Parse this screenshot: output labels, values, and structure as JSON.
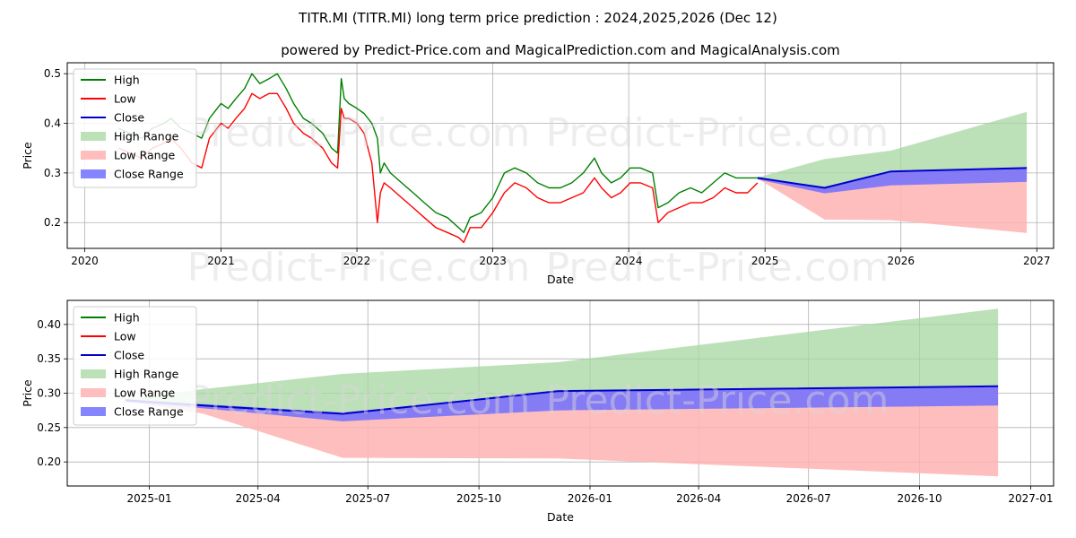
{
  "header": {
    "title": "TITR.MI (TITR.MI) long term price prediction : 2024,2025,2026 (Dec 12)",
    "subtitle": "powered by Predict-Price.com and MagicalPrediction.com and MagicalAnalysis.com"
  },
  "watermark": "Predict-Price.com",
  "colors": {
    "high": "#008000",
    "low": "#ff0000",
    "close": "#0000cc",
    "high_range": "#a6d5a0",
    "low_range": "#ffb3b3",
    "close_range": "#7070ff",
    "grid": "#b0b0b0"
  },
  "chart_data": [
    {
      "type": "line",
      "xlabel": "Date",
      "ylabel": "Price",
      "xlim": [
        "2019-11-15",
        "2027-02-15"
      ],
      "ylim": [
        0.148,
        0.522
      ],
      "x_ticks": [
        "2020",
        "2021",
        "2022",
        "2023",
        "2024",
        "2025",
        "2026",
        "2027"
      ],
      "y_ticks": [
        "0.2",
        "0.3",
        "0.4",
        "0.5"
      ],
      "legend": [
        "High",
        "Low",
        "Close",
        "High Range",
        "Low Range",
        "Close Range"
      ],
      "legend_position": "upper-left",
      "grid": true,
      "history": {
        "dates": [
          "2020-04-01",
          "2020-05-01",
          "2020-06-01",
          "2020-07-01",
          "2020-08-01",
          "2020-08-20",
          "2020-09-15",
          "2020-10-15",
          "2020-11-10",
          "2020-12-01",
          "2021-01-01",
          "2021-01-20",
          "2021-02-10",
          "2021-03-05",
          "2021-03-25",
          "2021-04-15",
          "2021-05-10",
          "2021-06-01",
          "2021-06-25",
          "2021-07-15",
          "2021-08-10",
          "2021-09-01",
          "2021-10-01",
          "2021-10-25",
          "2021-11-10",
          "2021-11-20",
          "2021-11-28",
          "2021-12-10",
          "2022-01-01",
          "2022-01-20",
          "2022-02-10",
          "2022-02-25",
          "2022-03-05",
          "2022-03-15",
          "2022-04-01",
          "2022-05-01",
          "2022-06-01",
          "2022-07-01",
          "2022-08-01",
          "2022-09-01",
          "2022-10-01",
          "2022-10-15",
          "2022-11-01",
          "2022-12-01",
          "2023-01-01",
          "2023-02-01",
          "2023-03-01",
          "2023-04-01",
          "2023-05-01",
          "2023-06-01",
          "2023-07-01",
          "2023-08-01",
          "2023-09-01",
          "2023-10-01",
          "2023-10-20",
          "2023-11-15",
          "2023-12-10",
          "2024-01-05",
          "2024-02-01",
          "2024-03-05",
          "2024-03-20",
          "2024-04-15",
          "2024-05-15",
          "2024-06-15",
          "2024-07-15",
          "2024-08-15",
          "2024-09-15",
          "2024-10-15",
          "2024-11-15",
          "2024-12-12"
        ],
        "high": [
          0.39,
          0.38,
          0.37,
          0.39,
          0.4,
          0.41,
          0.39,
          0.38,
          0.37,
          0.41,
          0.44,
          0.43,
          0.45,
          0.47,
          0.5,
          0.48,
          0.49,
          0.5,
          0.47,
          0.44,
          0.41,
          0.4,
          0.38,
          0.35,
          0.34,
          0.49,
          0.45,
          0.44,
          0.43,
          0.42,
          0.4,
          0.37,
          0.3,
          0.32,
          0.3,
          0.28,
          0.26,
          0.24,
          0.22,
          0.21,
          0.19,
          0.18,
          0.21,
          0.22,
          0.25,
          0.3,
          0.31,
          0.3,
          0.28,
          0.27,
          0.27,
          0.28,
          0.3,
          0.33,
          0.3,
          0.28,
          0.29,
          0.31,
          0.31,
          0.3,
          0.23,
          0.24,
          0.26,
          0.27,
          0.26,
          0.28,
          0.3,
          0.29,
          0.29,
          0.29
        ],
        "low": [
          0.35,
          0.34,
          0.33,
          0.35,
          0.36,
          0.37,
          0.35,
          0.32,
          0.31,
          0.37,
          0.4,
          0.39,
          0.41,
          0.43,
          0.46,
          0.45,
          0.46,
          0.46,
          0.43,
          0.4,
          0.38,
          0.37,
          0.35,
          0.32,
          0.31,
          0.43,
          0.41,
          0.41,
          0.4,
          0.38,
          0.32,
          0.2,
          0.26,
          0.28,
          0.27,
          0.25,
          0.23,
          0.21,
          0.19,
          0.18,
          0.17,
          0.16,
          0.19,
          0.19,
          0.22,
          0.26,
          0.28,
          0.27,
          0.25,
          0.24,
          0.24,
          0.25,
          0.26,
          0.29,
          0.27,
          0.25,
          0.26,
          0.28,
          0.28,
          0.27,
          0.2,
          0.22,
          0.23,
          0.24,
          0.24,
          0.25,
          0.27,
          0.26,
          0.26,
          0.28
        ]
      },
      "forecast": {
        "dates": [
          "2024-12-12",
          "2025-06-10",
          "2025-12-05",
          "2026-12-05"
        ],
        "close": [
          0.29,
          0.27,
          0.303,
          0.31
        ],
        "high_range_upper": [
          0.291,
          0.328,
          0.345,
          0.423
        ],
        "low_range_lower": [
          0.289,
          0.206,
          0.205,
          0.179
        ],
        "close_range_upper": [
          0.29,
          0.272,
          0.302,
          0.309
        ],
        "close_range_lower": [
          0.287,
          0.259,
          0.275,
          0.282
        ]
      }
    },
    {
      "type": "line",
      "xlabel": "Date",
      "ylabel": "Price",
      "xlim": [
        "2024-10-25",
        "2027-01-20"
      ],
      "ylim": [
        0.165,
        0.435
      ],
      "x_ticks": [
        "2025-01",
        "2025-04",
        "2025-07",
        "2025-10",
        "2026-01",
        "2026-04",
        "2026-07",
        "2026-10",
        "2027-01"
      ],
      "y_ticks": [
        "0.20",
        "0.25",
        "0.30",
        "0.35",
        "0.40"
      ],
      "legend": [
        "High",
        "Low",
        "Close",
        "High Range",
        "Low Range",
        "Close Range"
      ],
      "legend_position": "upper-left",
      "grid": true,
      "forecast": {
        "dates": [
          "2024-12-12",
          "2025-02-15",
          "2025-06-10",
          "2025-12-05",
          "2026-12-05"
        ],
        "close": [
          0.29,
          0.282,
          0.27,
          0.303,
          0.31
        ],
        "high_range_upper": [
          0.291,
          0.306,
          0.328,
          0.345,
          0.423
        ],
        "low_range_lower": [
          0.289,
          0.27,
          0.206,
          0.205,
          0.179
        ],
        "close_range_upper": [
          0.29,
          0.284,
          0.272,
          0.302,
          0.309
        ],
        "close_range_lower": [
          0.287,
          0.278,
          0.259,
          0.275,
          0.282
        ]
      }
    }
  ]
}
